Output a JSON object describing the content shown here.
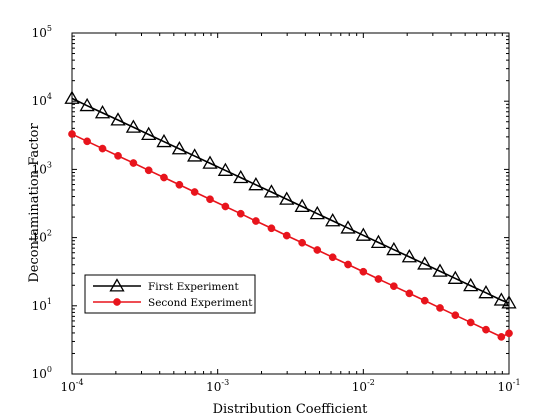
{
  "chart_data": {
    "type": "line",
    "title": "",
    "xlabel": "Distribution Coefficient",
    "ylabel": "Decontamination Factor",
    "xscale": "log",
    "yscale": "log",
    "xlim": [
      0.0001,
      0.1
    ],
    "ylim": [
      1,
      100000
    ],
    "grid": false,
    "legend_position": "lower-left",
    "x_ticks": [
      {
        "base": "10",
        "exp": "-4",
        "value": 0.0001
      },
      {
        "base": "10",
        "exp": "-3",
        "value": 0.001
      },
      {
        "base": "10",
        "exp": "-2",
        "value": 0.01
      },
      {
        "base": "10",
        "exp": "-1",
        "value": 0.1
      }
    ],
    "y_ticks": [
      {
        "base": "10",
        "exp": "0",
        "value": 1
      },
      {
        "base": "10",
        "exp": "1",
        "value": 10
      },
      {
        "base": "10",
        "exp": "2",
        "value": 100
      },
      {
        "base": "10",
        "exp": "3",
        "value": 1000
      },
      {
        "base": "10",
        "exp": "4",
        "value": 10000
      },
      {
        "base": "10",
        "exp": "5",
        "value": 100000
      }
    ],
    "series": [
      {
        "name": "First Experiment",
        "color": "#000000",
        "marker": "triangle-open",
        "x": [
          0.0001,
          0.000127,
          0.000162,
          0.000207,
          0.000264,
          0.000336,
          0.000428,
          0.000546,
          0.000695,
          0.000886,
          0.00113,
          0.00144,
          0.00183,
          0.00234,
          0.00298,
          0.0038,
          0.00483,
          0.00616,
          0.00785,
          0.01,
          0.0127,
          0.0162,
          0.0207,
          0.0264,
          0.0336,
          0.0428,
          0.0546,
          0.0695,
          0.0886,
          0.1
        ],
        "y": [
          11000,
          8600,
          6750,
          5300,
          4150,
          3250,
          2550,
          2000,
          1570,
          1230,
          965,
          757,
          594,
          466,
          365,
          286,
          224,
          176,
          138,
          108,
          84.8,
          66.5,
          52.2,
          40.9,
          32.1,
          25.2,
          19.7,
          15.5,
          12.1,
          11
        ]
      },
      {
        "name": "Second Experiment",
        "color": "#e8141c",
        "marker": "circle-filled",
        "x": [
          0.0001,
          0.000127,
          0.000162,
          0.000207,
          0.000264,
          0.000336,
          0.000428,
          0.000546,
          0.000695,
          0.000886,
          0.00113,
          0.00144,
          0.00183,
          0.00234,
          0.00298,
          0.0038,
          0.00483,
          0.00616,
          0.00785,
          0.01,
          0.0127,
          0.0162,
          0.0207,
          0.0264,
          0.0336,
          0.0428,
          0.0546,
          0.0695,
          0.0886,
          0.1
        ],
        "y": [
          3300,
          2580,
          2020,
          1580,
          1240,
          970,
          760,
          595,
          466,
          365,
          286,
          224,
          175,
          137,
          107,
          84,
          65.8,
          51.5,
          40.3,
          31.6,
          24.7,
          19.4,
          15.2,
          11.9,
          9.3,
          7.28,
          5.7,
          4.47,
          3.5,
          3.95
        ]
      }
    ]
  }
}
